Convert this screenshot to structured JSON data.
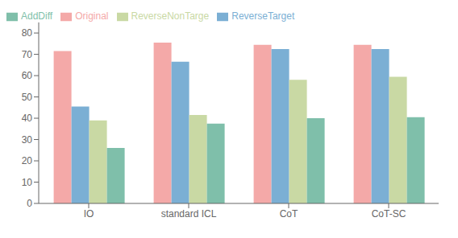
{
  "chart_data": {
    "type": "bar",
    "categories": [
      "IO",
      "standard ICL",
      "CoT",
      "CoT-SC"
    ],
    "series": [
      {
        "name": "Original",
        "color": "#f4a9a8",
        "values": [
          71.5,
          75.5,
          74.5,
          74.5
        ]
      },
      {
        "name": "ReverseTarget",
        "color": "#7bafd4",
        "values": [
          45.5,
          66.5,
          72.5,
          72.5
        ]
      },
      {
        "name": "ReverseNonTarge",
        "color": "#c9d9a4",
        "values": [
          39.0,
          41.5,
          58.0,
          59.5
        ]
      },
      {
        "name": "AddDiff",
        "color": "#7fbfaa",
        "values": [
          26.0,
          37.5,
          40.0,
          40.5
        ]
      }
    ],
    "ylim": [
      0,
      85
    ],
    "yticks": [
      0,
      10,
      20,
      30,
      40,
      50,
      60,
      70,
      80
    ],
    "grid": false,
    "legend": "upper left"
  }
}
